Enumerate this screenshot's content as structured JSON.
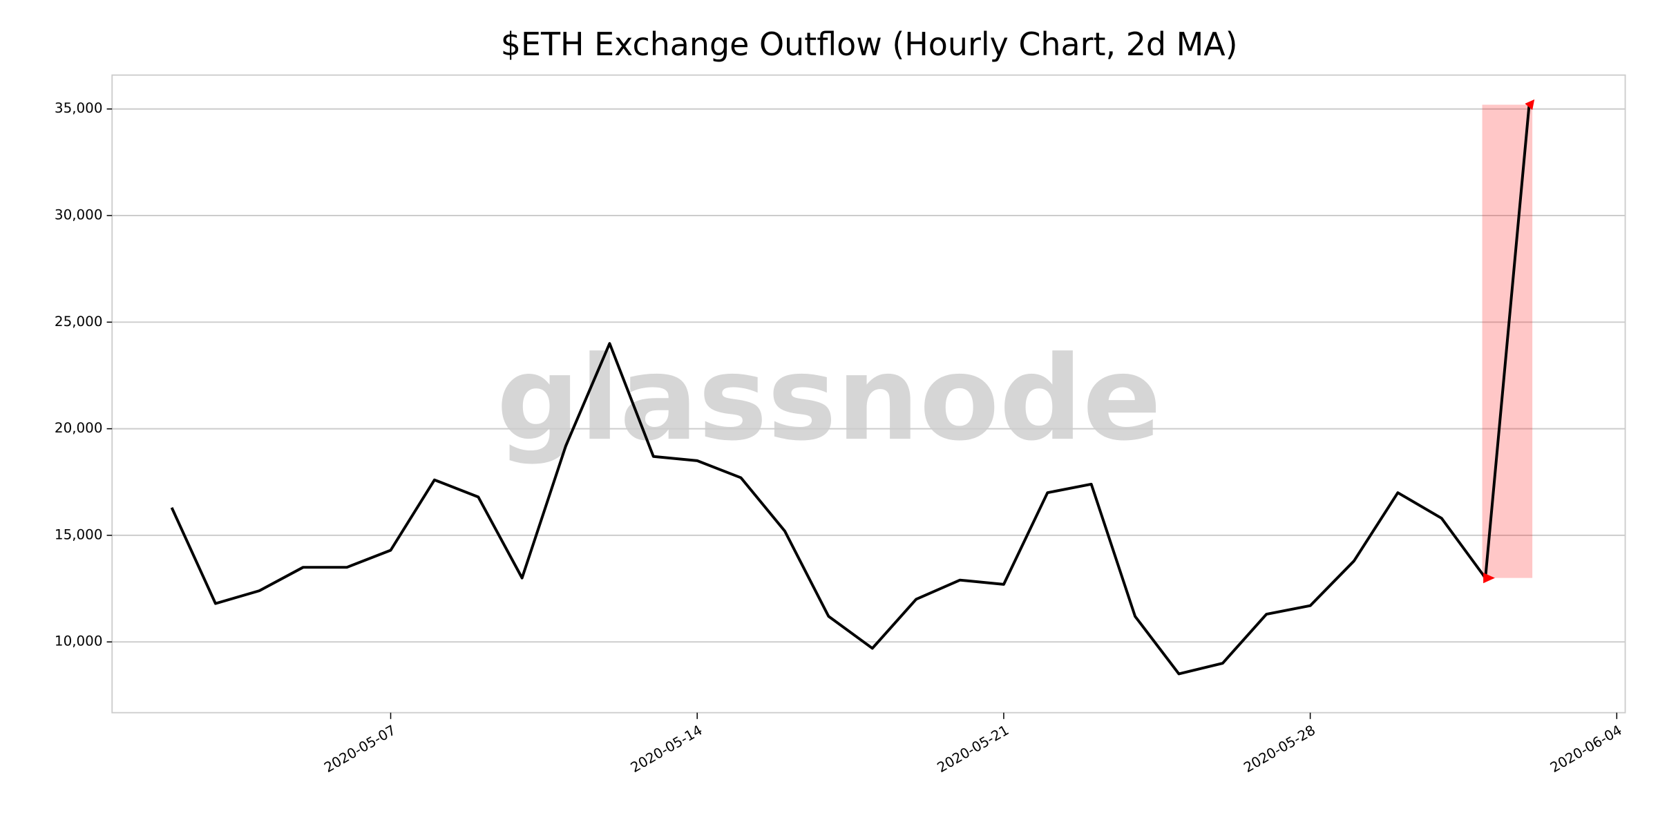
{
  "chart_data": {
    "type": "line",
    "title": "$ETH Exchange Outflow (Hourly Chart, 2d MA)",
    "watermark": "glassnode",
    "x": [
      "2020-05-02",
      "2020-05-03",
      "2020-05-04",
      "2020-05-05",
      "2020-05-06",
      "2020-05-07",
      "2020-05-08",
      "2020-05-09",
      "2020-05-10",
      "2020-05-11",
      "2020-05-12",
      "2020-05-13",
      "2020-05-14",
      "2020-05-15",
      "2020-05-16",
      "2020-05-17",
      "2020-05-18",
      "2020-05-19",
      "2020-05-20",
      "2020-05-21",
      "2020-05-22",
      "2020-05-23",
      "2020-05-24",
      "2020-05-25",
      "2020-05-26",
      "2020-05-27",
      "2020-05-28",
      "2020-05-29",
      "2020-05-30",
      "2020-05-31",
      "2020-06-01",
      "2020-06-02"
    ],
    "series": [
      {
        "name": "ETH Exchange Outflow",
        "color": "#000000",
        "values": [
          16300,
          11800,
          12400,
          13500,
          13500,
          14300,
          17600,
          16800,
          13000,
          19200,
          24000,
          18700,
          18500,
          17700,
          15200,
          11200,
          9700,
          12000,
          12900,
          12700,
          17000,
          17400,
          11200,
          8500,
          9000,
          11300,
          11700,
          13800,
          17000,
          15800,
          13000,
          35200
        ]
      }
    ],
    "highlight_color": "#ff0000",
    "xlim": [
      "2020-05-01",
      "2020-06-04"
    ],
    "xticks": [
      "2020-05-07",
      "2020-05-14",
      "2020-05-21",
      "2020-05-28",
      "2020-06-04"
    ],
    "ylim": [
      6680,
      36590
    ],
    "yticks": [
      {
        "value": 10000,
        "label": "10,000"
      },
      {
        "value": 15000,
        "label": "15,000"
      },
      {
        "value": 20000,
        "label": "20,000"
      },
      {
        "value": 25000,
        "label": "25,000"
      },
      {
        "value": 30000,
        "label": "30,000"
      },
      {
        "value": 35000,
        "label": "35,000"
      }
    ],
    "grid": true
  }
}
